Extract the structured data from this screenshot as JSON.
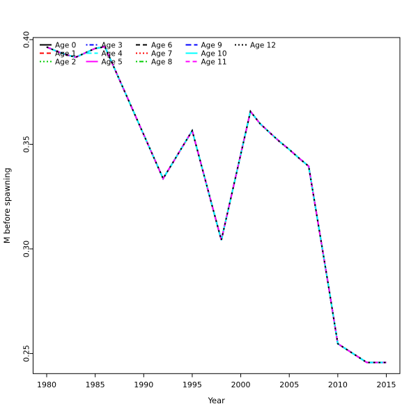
{
  "figure": {
    "background": "#ffffff",
    "axis_color": "#000000",
    "text_color": "#000000"
  },
  "axes": {
    "xlabel": "Year",
    "ylabel": "M before spawning",
    "xtick_labels": [
      "1980",
      "1985",
      "1990",
      "1995",
      "2000",
      "2005",
      "2010",
      "2015"
    ],
    "xtick_values": [
      1980,
      1985,
      1990,
      1995,
      2000,
      2005,
      2010,
      2015
    ],
    "ytick_labels": [
      "0.25",
      "0.30",
      "0.35",
      "0.40"
    ],
    "ytick_values": [
      0.25,
      0.3,
      0.35,
      0.4
    ]
  },
  "legend": {
    "columns": 5,
    "rows_per_column": 3,
    "entries": [
      {
        "label": "Age 0",
        "color": "#000000",
        "linetype": "solid"
      },
      {
        "label": "Age 1",
        "color": "#FF0000",
        "linetype": "dashed"
      },
      {
        "label": "Age 2",
        "color": "#00CD00",
        "linetype": "dotted"
      },
      {
        "label": "Age 3",
        "color": "#0000FF",
        "linetype": "dotdash"
      },
      {
        "label": "Age 4",
        "color": "#00FFFF",
        "linetype": "longdash"
      },
      {
        "label": "Age 5",
        "color": "#FF00FF",
        "linetype": "solid"
      },
      {
        "label": "Age 6",
        "color": "#000000",
        "linetype": "dashed"
      },
      {
        "label": "Age 7",
        "color": "#FF0000",
        "linetype": "dotted"
      },
      {
        "label": "Age 8",
        "color": "#00CD00",
        "linetype": "dotdash"
      },
      {
        "label": "Age 9",
        "color": "#0000FF",
        "linetype": "longdash"
      },
      {
        "label": "Age 10",
        "color": "#00FFFF",
        "linetype": "solid"
      },
      {
        "label": "Age 11",
        "color": "#FF00FF",
        "linetype": "dashed"
      },
      {
        "label": "Age 12",
        "color": "#000000",
        "linetype": "dotted"
      }
    ]
  },
  "chart_data": {
    "type": "line",
    "title": "",
    "xlabel": "Year",
    "ylabel": "M before spawning",
    "x": [
      1980,
      1981,
      1982,
      1983,
      1984,
      1985,
      1986,
      1987,
      1988,
      1989,
      1990,
      1991,
      1992,
      1993,
      1994,
      1995,
      1996,
      1997,
      1998,
      1999,
      2000,
      2001,
      2002,
      2003,
      2004,
      2005,
      2006,
      2007,
      2008,
      2009,
      2010,
      2011,
      2012,
      2013,
      2014,
      2015
    ],
    "values_shared_by_all_series": [
      0.3965,
      0.3945,
      0.3928,
      0.3916,
      0.3937,
      0.3958,
      0.3966,
      0.3861,
      0.3756,
      0.3651,
      0.3546,
      0.3441,
      0.3336,
      0.3412,
      0.3489,
      0.3565,
      0.339,
      0.3215,
      0.3042,
      0.3247,
      0.3452,
      0.3657,
      0.3598,
      0.3555,
      0.3513,
      0.3475,
      0.3434,
      0.3395,
      0.3115,
      0.2835,
      0.2547,
      0.2517,
      0.2487,
      0.2457,
      0.2457,
      0.2457
    ],
    "series": [
      {
        "name": "Age 0",
        "color": "#000000",
        "linetype": "solid",
        "values": "shared"
      },
      {
        "name": "Age 1",
        "color": "#FF0000",
        "linetype": "dashed",
        "values": "shared"
      },
      {
        "name": "Age 2",
        "color": "#00CD00",
        "linetype": "dotted",
        "values": "shared"
      },
      {
        "name": "Age 3",
        "color": "#0000FF",
        "linetype": "dotdash",
        "values": "shared"
      },
      {
        "name": "Age 4",
        "color": "#00FFFF",
        "linetype": "longdash",
        "values": "shared"
      },
      {
        "name": "Age 5",
        "color": "#FF00FF",
        "linetype": "solid",
        "values": "shared"
      },
      {
        "name": "Age 6",
        "color": "#000000",
        "linetype": "dashed",
        "values": "shared"
      },
      {
        "name": "Age 7",
        "color": "#FF0000",
        "linetype": "dotted",
        "values": "shared"
      },
      {
        "name": "Age 8",
        "color": "#00CD00",
        "linetype": "dotdash",
        "values": "shared"
      },
      {
        "name": "Age 9",
        "color": "#0000FF",
        "linetype": "longdash",
        "values": "shared"
      },
      {
        "name": "Age 10",
        "color": "#00FFFF",
        "linetype": "solid",
        "values": "shared"
      },
      {
        "name": "Age 11",
        "color": "#FF00FF",
        "linetype": "dashed",
        "values": "shared"
      },
      {
        "name": "Age 12",
        "color": "#000000",
        "linetype": "dotted",
        "values": "shared"
      }
    ],
    "xlim": [
      1978.6,
      2016.4
    ],
    "ylim": [
      0.2404,
      0.401
    ],
    "xticks": [
      1980,
      1985,
      1990,
      1995,
      2000,
      2005,
      2010,
      2015
    ],
    "yticks": [
      0.25,
      0.3,
      0.35,
      0.4
    ],
    "grid": false,
    "legend_position": "top-left-inside",
    "legend_columns": 5
  }
}
